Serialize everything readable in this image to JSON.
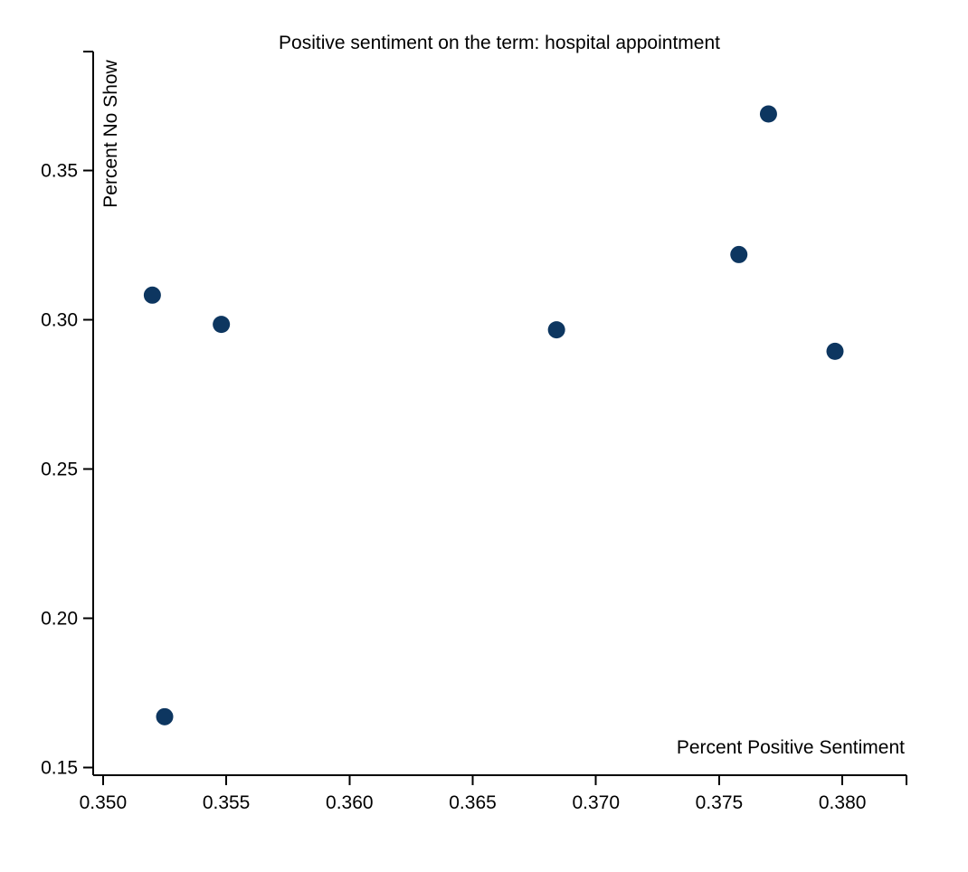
{
  "chart_data": {
    "type": "scatter",
    "title": "Positive sentiment on the term: hospital appointment",
    "xlabel": "Percent Positive Sentiment",
    "ylabel": "Percent No Show",
    "xlim": [
      0.3496,
      0.3826
    ],
    "ylim": [
      0.1475,
      0.3899
    ],
    "x_ticks": [
      "0.350",
      "0.355",
      "0.360",
      "0.365",
      "0.370",
      "0.375",
      "0.380"
    ],
    "y_ticks": [
      "0.15",
      "0.20",
      "0.25",
      "0.30",
      "0.35"
    ],
    "grid": false,
    "point_color": "#0d3660",
    "points": [
      {
        "x": 0.352,
        "y": 0.3083
      },
      {
        "x": 0.3525,
        "y": 0.1671
      },
      {
        "x": 0.3548,
        "y": 0.2985
      },
      {
        "x": 0.3684,
        "y": 0.2967
      },
      {
        "x": 0.3758,
        "y": 0.3219
      },
      {
        "x": 0.377,
        "y": 0.369
      },
      {
        "x": 0.3797,
        "y": 0.2895
      }
    ]
  }
}
